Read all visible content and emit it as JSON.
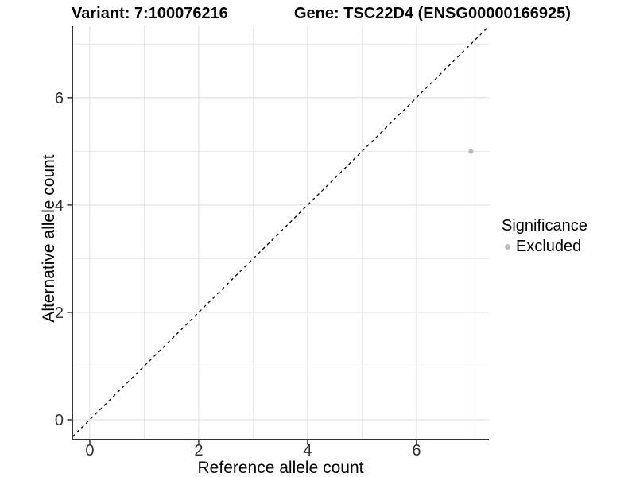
{
  "chart_data": {
    "type": "scatter",
    "title_left": "Variant: 7:100076216",
    "title_right": "Gene: TSC22D4 (ENSG00000166925)",
    "xlabel": "Reference allele count",
    "ylabel": "Alternative allele count",
    "xlim": [
      -0.32,
      7.33
    ],
    "ylim": [
      -0.37,
      7.33
    ],
    "x_ticks": [
      0,
      2,
      4,
      6
    ],
    "y_ticks": [
      0,
      2,
      4,
      6
    ],
    "grid": {
      "on": true,
      "major_lines": [
        0,
        2,
        4,
        6
      ],
      "minor_lines": [
        1,
        3,
        5,
        7
      ]
    },
    "identity_line": {
      "equation": "y = x",
      "style": "dashed",
      "color": "#000000"
    },
    "series": [
      {
        "name": "Excluded",
        "color": "#bebebe",
        "points": [
          [
            7,
            5
          ]
        ]
      }
    ],
    "legend": {
      "position": "right",
      "title": "Significance",
      "items": [
        {
          "label": "Excluded",
          "color": "#bebebe"
        }
      ]
    },
    "colors": {
      "axis_line": "#333333",
      "tick_mark": "#333333",
      "tick_label": "#303030",
      "grid_major": "#dedede",
      "grid_minor": "#e9e9e9",
      "panel_background": "#ffffff"
    }
  }
}
